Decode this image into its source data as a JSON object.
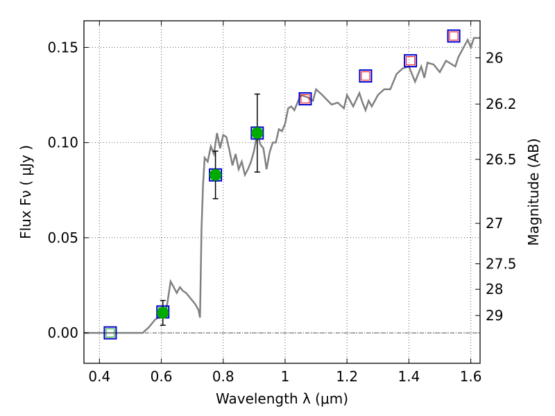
{
  "chart_data": {
    "type": "scatter",
    "xlabel": "Wavelength  λ (μm)",
    "ylabel": "Flux  Fν  ( μJy )",
    "y2label": "Magnitude (AB)",
    "xlim": [
      0.35,
      1.63
    ],
    "ylim": [
      -0.016,
      0.164
    ],
    "grid": true,
    "x_ticks": [
      {
        "value": 0.4,
        "label": "0.4"
      },
      {
        "value": 0.6,
        "label": "0.6"
      },
      {
        "value": 0.8,
        "label": "0.8"
      },
      {
        "value": 1.0,
        "label": "1"
      },
      {
        "value": 1.2,
        "label": "1.2"
      },
      {
        "value": 1.4,
        "label": "1.4"
      },
      {
        "value": 1.6,
        "label": "1.6"
      }
    ],
    "y_ticks": [
      {
        "value": 0.0,
        "label": "0.00"
      },
      {
        "value": 0.05,
        "label": "0.05"
      },
      {
        "value": 0.1,
        "label": "0.10"
      },
      {
        "value": 0.15,
        "label": "0.15"
      }
    ],
    "y2_ticks": [
      {
        "value": 26,
        "label": "26"
      },
      {
        "value": 26.2,
        "label": "26.2"
      },
      {
        "value": 26.5,
        "label": "26.5"
      },
      {
        "value": 27,
        "label": "27"
      },
      {
        "value": 27.5,
        "label": "27.5"
      },
      {
        "value": 28,
        "label": "28"
      },
      {
        "value": 29,
        "label": "29"
      }
    ],
    "model_spectrum": {
      "color": "#808080",
      "x": [
        0.35,
        0.54,
        0.56,
        0.58,
        0.59,
        0.6,
        0.61,
        0.62,
        0.63,
        0.64,
        0.65,
        0.66,
        0.67,
        0.68,
        0.69,
        0.7,
        0.71,
        0.72,
        0.725,
        0.73,
        0.735,
        0.74,
        0.75,
        0.76,
        0.77,
        0.78,
        0.79,
        0.8,
        0.81,
        0.82,
        0.83,
        0.84,
        0.85,
        0.86,
        0.87,
        0.88,
        0.89,
        0.9,
        0.91,
        0.92,
        0.93,
        0.94,
        0.95,
        0.96,
        0.97,
        0.98,
        0.99,
        1.0,
        1.01,
        1.02,
        1.03,
        1.05,
        1.07,
        1.09,
        1.1,
        1.12,
        1.15,
        1.17,
        1.19,
        1.2,
        1.22,
        1.24,
        1.25,
        1.26,
        1.27,
        1.28,
        1.3,
        1.32,
        1.34,
        1.36,
        1.38,
        1.4,
        1.42,
        1.44,
        1.45,
        1.46,
        1.48,
        1.5,
        1.52,
        1.55,
        1.56,
        1.58,
        1.59,
        1.6,
        1.61,
        1.63
      ],
      "y": [
        0.0,
        0.0,
        0.003,
        0.007,
        0.008,
        0.01,
        0.009,
        0.016,
        0.027,
        0.024,
        0.021,
        0.024,
        0.022,
        0.021,
        0.019,
        0.017,
        0.015,
        0.012,
        0.008,
        0.055,
        0.078,
        0.092,
        0.09,
        0.098,
        0.094,
        0.105,
        0.097,
        0.104,
        0.103,
        0.096,
        0.088,
        0.094,
        0.086,
        0.09,
        0.083,
        0.086,
        0.09,
        0.096,
        0.105,
        0.099,
        0.097,
        0.086,
        0.095,
        0.1,
        0.1,
        0.107,
        0.106,
        0.11,
        0.118,
        0.119,
        0.117,
        0.125,
        0.124,
        0.122,
        0.128,
        0.125,
        0.12,
        0.121,
        0.118,
        0.125,
        0.119,
        0.126,
        0.121,
        0.117,
        0.122,
        0.119,
        0.125,
        0.128,
        0.128,
        0.136,
        0.139,
        0.14,
        0.132,
        0.14,
        0.134,
        0.142,
        0.141,
        0.137,
        0.143,
        0.14,
        0.145,
        0.151,
        0.154,
        0.15,
        0.155,
        0.155
      ]
    },
    "observed_points": [
      {
        "x": 0.605,
        "y": 0.0105,
        "yerr": 0.0065
      },
      {
        "x": 0.775,
        "y": 0.083,
        "yerr_low": 0.0125,
        "yerr_high": 0.0125
      },
      {
        "x": 0.91,
        "y": 0.105,
        "yerr_low": 0.0205,
        "yerr_high": 0.0205
      }
    ],
    "observed_color": "#00aa00",
    "model_points": [
      {
        "x": 0.435,
        "y": 0.0,
        "inner": "#00aa00"
      },
      {
        "x": 0.605,
        "y": 0.011,
        "inner": "#00aa00"
      },
      {
        "x": 0.775,
        "y": 0.083,
        "inner": "#00aa00"
      },
      {
        "x": 0.91,
        "y": 0.105,
        "inner": "#00aa00"
      },
      {
        "x": 1.065,
        "y": 0.123,
        "inner": "#ff0000"
      },
      {
        "x": 1.26,
        "y": 0.135,
        "inner": "#ff0000"
      },
      {
        "x": 1.405,
        "y": 0.143,
        "inner": "#ff0000"
      },
      {
        "x": 1.545,
        "y": 0.156,
        "inner": "#ff0000"
      }
    ],
    "model_marker_color": "#0000cc"
  }
}
